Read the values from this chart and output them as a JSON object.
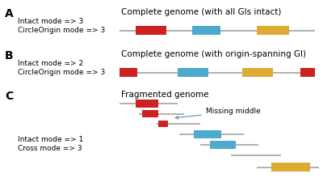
{
  "section_labels": [
    "A",
    "B",
    "C"
  ],
  "text_A": [
    "Intact mode => 3",
    "CircleOrigin mode => 3"
  ],
  "text_B": [
    "Intact mode => 2",
    "CircleOrigin mode => 3"
  ],
  "text_C": [
    "Intact mode => 1",
    "Cross mode => 3"
  ],
  "title_A": "Complete genome (with all GIs intact)",
  "title_B": "Complete genome (with origin-spanning GI)",
  "title_C": "Fragmented genome",
  "annotation_C": "Missing middle",
  "colors": {
    "red": "#CC2222",
    "blue": "#4DAACC",
    "yellow": "#DDAA33",
    "line": "#AAAAAA",
    "arrow": "#6699BB"
  },
  "bg": "#ffffff"
}
